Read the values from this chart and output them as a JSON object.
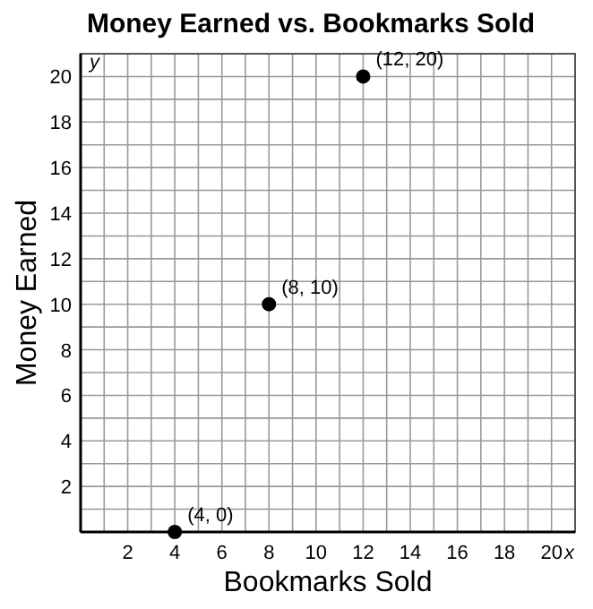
{
  "chart_data": {
    "type": "scatter",
    "title": "Money Earned vs. Bookmarks Sold",
    "xlabel": "Bookmarks Sold",
    "ylabel": "Money Earned",
    "x": [
      4,
      8,
      12
    ],
    "values": [
      0,
      10,
      20
    ],
    "color": "#000000",
    "marker": "circle",
    "grid": true,
    "xlim": [
      0,
      21
    ],
    "ylim": [
      0,
      21
    ],
    "xticks": [
      {
        "value": 1,
        "label": null
      },
      2,
      {
        "value": 3,
        "label": null
      },
      4,
      {
        "value": 5,
        "label": null
      },
      6,
      {
        "value": 7,
        "label": null
      },
      8,
      {
        "value": 9,
        "label": null
      },
      10,
      {
        "value": 11,
        "label": null
      },
      12,
      {
        "value": 13,
        "label": null
      },
      14,
      {
        "value": 15,
        "label": null
      },
      16,
      {
        "value": 17,
        "label": null
      },
      18,
      {
        "value": 19,
        "label": null
      },
      20
    ],
    "yticks": [
      {
        "value": 1,
        "label": null
      },
      2,
      {
        "value": 3,
        "label": null
      },
      4,
      {
        "value": 5,
        "label": null
      },
      6,
      {
        "value": 7,
        "label": null
      },
      8,
      {
        "value": 9,
        "label": null
      },
      10,
      {
        "value": 11,
        "label": null
      },
      12,
      {
        "value": 13,
        "label": null
      },
      14,
      {
        "value": 15,
        "label": null
      },
      16,
      {
        "value": 17,
        "label": null
      },
      18,
      {
        "value": 19,
        "label": null
      },
      20
    ],
    "annotations": [
      "x",
      "y",
      {
        "text": "(4, 0)",
        "x": 4,
        "y": 0
      },
      {
        "text": "(8, 10)",
        "x": 8,
        "y": 10
      },
      {
        "text": "(12, 20)",
        "x": 12,
        "y": 20
      }
    ]
  }
}
